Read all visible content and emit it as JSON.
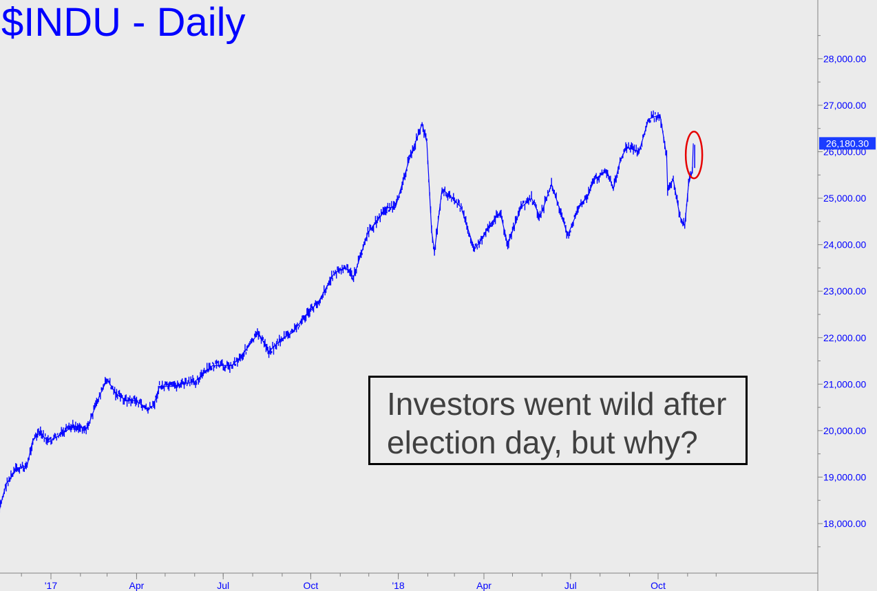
{
  "chart_data": {
    "type": "line",
    "title": "$INDU - Daily",
    "series": [
      {
        "x": [
          "2016-11-04",
          "2016-11-09",
          "2016-11-15",
          "2016-11-25",
          "2016-12-07",
          "2016-12-13",
          "2016-12-20",
          "2016-12-30",
          "2017-01-10",
          "2017-01-25",
          "2017-02-08",
          "2017-02-21",
          "2017-03-01",
          "2017-03-10",
          "2017-03-21",
          "2017-03-31",
          "2017-04-13",
          "2017-04-19",
          "2017-04-25",
          "2017-05-10",
          "2017-05-17",
          "2017-06-01",
          "2017-06-20",
          "2017-07-10",
          "2017-07-20",
          "2017-08-07",
          "2017-08-18",
          "2017-09-01",
          "2017-09-11",
          "2017-09-25",
          "2017-10-10",
          "2017-10-26",
          "2017-11-07",
          "2017-11-15",
          "2017-11-30",
          "2017-12-20",
          "2017-12-29",
          "2018-01-12",
          "2018-01-26",
          "2018-01-31",
          "2018-02-05",
          "2018-02-08",
          "2018-02-16",
          "2018-02-27",
          "2018-03-08",
          "2018-03-22",
          "2018-03-29",
          "2018-04-06",
          "2018-04-18",
          "2018-04-26",
          "2018-05-10",
          "2018-05-21",
          "2018-05-30",
          "2018-06-11",
          "2018-06-19",
          "2018-06-28",
          "2018-07-10",
          "2018-07-20",
          "2018-07-26",
          "2018-08-08",
          "2018-08-15",
          "2018-08-22",
          "2018-08-29",
          "2018-09-11",
          "2018-09-21",
          "2018-10-03",
          "2018-10-10",
          "2018-10-11",
          "2018-10-17",
          "2018-10-24",
          "2018-10-29",
          "2018-11-02",
          "2018-11-06",
          "2018-11-07"
        ],
        "values": [
          17900,
          18400,
          18850,
          19150,
          19250,
          19800,
          19950,
          19760,
          19900,
          20100,
          20050,
          20750,
          21100,
          20800,
          20650,
          20650,
          20450,
          20550,
          20950,
          20950,
          21000,
          21050,
          21400,
          21400,
          21600,
          22100,
          21700,
          21980,
          22100,
          22450,
          22800,
          23400,
          23500,
          23300,
          24250,
          24800,
          24800,
          25800,
          26600,
          26200,
          24300,
          23850,
          25200,
          25000,
          24800,
          23900,
          24100,
          24400,
          24700,
          24000,
          24800,
          25000,
          24600,
          25300,
          24800,
          24200,
          24800,
          25100,
          25400,
          25600,
          25200,
          25800,
          26100,
          26000,
          26700,
          26800,
          25900,
          25200,
          25400,
          24600,
          24400,
          25300,
          25600,
          26180
        ]
      }
    ],
    "y_axis": {
      "min": 17200,
      "max": 29000,
      "ticks": [
        "28,000.00",
        "27,000.00",
        "26,000.00",
        "25,000.00",
        "24,000.00",
        "23,000.00",
        "22,000.00",
        "21,000.00",
        "20,000.00",
        "19,000.00",
        "18,000.00"
      ],
      "tick_values": [
        28000,
        27000,
        26000,
        25000,
        24000,
        23000,
        22000,
        21000,
        20000,
        19000,
        18000
      ],
      "side": "right"
    },
    "x_axis": {
      "tick_labels": [
        "'17",
        "Apr",
        "Jul",
        "Oct",
        "'18",
        "Apr",
        "Jul",
        "Oct"
      ],
      "tick_dates": [
        "2017-01-01",
        "2017-04-01",
        "2017-07-01",
        "2017-10-01",
        "2018-01-01",
        "2018-04-01",
        "2018-07-01",
        "2018-10-01"
      ]
    },
    "last_value_label": "26,180.30",
    "annotation": [
      "Investors went wild after",
      "election day, but why?"
    ],
    "colors": {
      "line": "#0000ff",
      "highlight_ring": "#e60000",
      "background": "#ebebeb",
      "axis": "#808080"
    },
    "grid": false
  }
}
